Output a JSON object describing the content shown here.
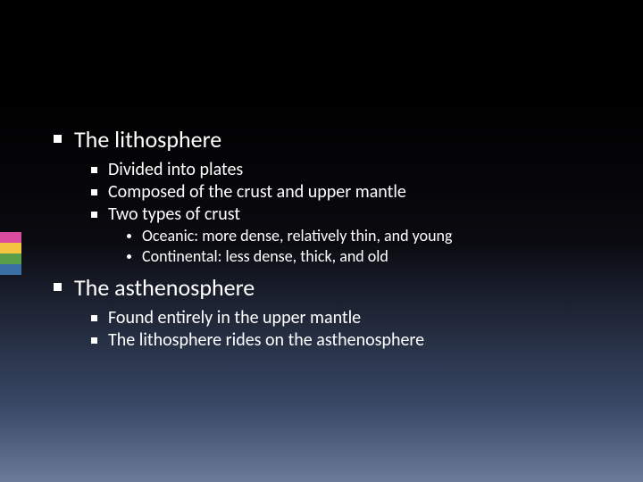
{
  "accent_colors": [
    "#d94c9e",
    "#f5c542",
    "#5a9e4a",
    "#3a6ea5"
  ],
  "items": [
    {
      "level": 1,
      "text": "The lithosphere"
    },
    {
      "level": 2,
      "text": "Divided into plates"
    },
    {
      "level": 2,
      "text": "Composed of the crust and upper mantle"
    },
    {
      "level": 2,
      "text": "Two types of crust"
    },
    {
      "level": 3,
      "text": "Oceanic: more dense, relatively thin, and young"
    },
    {
      "level": 3,
      "text": "Continental: less dense, thick, and old"
    },
    {
      "level": 1,
      "text": "The asthenosphere"
    },
    {
      "level": 2,
      "text": "Found entirely in the upper mantle"
    },
    {
      "level": 2,
      "text": "The lithosphere rides on the asthenosphere"
    }
  ]
}
